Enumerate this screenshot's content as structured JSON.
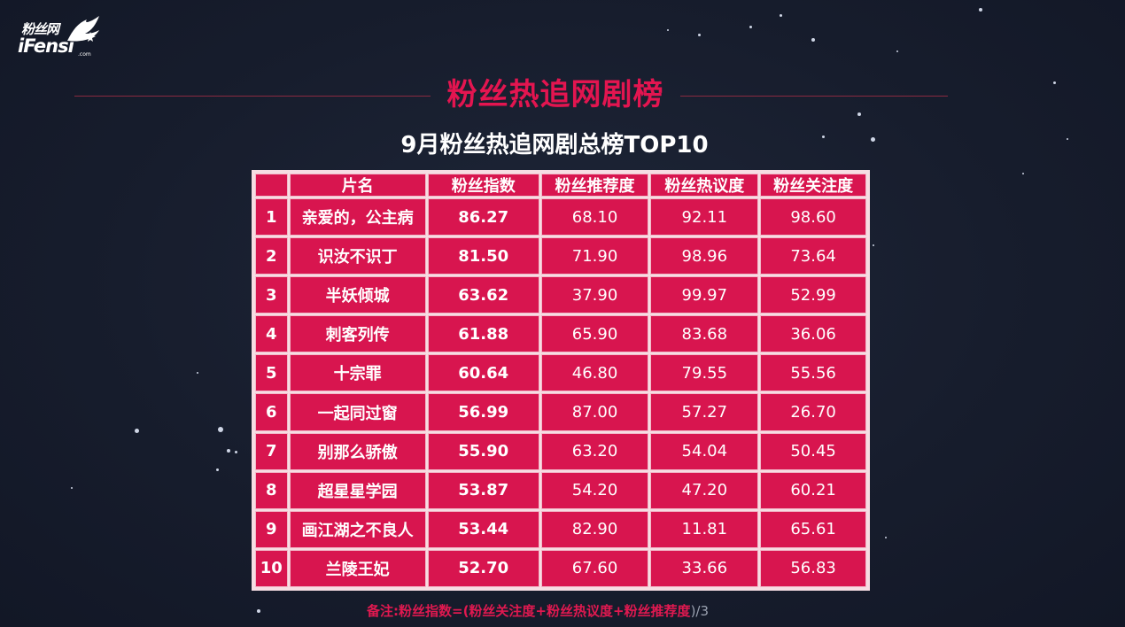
{
  "logo": {
    "top_text": "粉丝网",
    "main_text": "iFensi",
    "suffix": ".com"
  },
  "title": "粉丝热追网剧榜",
  "subtitle": "9月粉丝热追网剧总榜TOP10",
  "table": {
    "headers": [
      "",
      "片名",
      "粉丝指数",
      "粉丝推荐度",
      "粉丝热议度",
      "粉丝关注度"
    ],
    "rows": [
      [
        "1",
        "亲爱的，公主病",
        "86.27",
        "68.10",
        "92.11",
        "98.60"
      ],
      [
        "2",
        "识汝不识丁",
        "81.50",
        "71.90",
        "98.96",
        "73.64"
      ],
      [
        "3",
        "半妖倾城",
        "63.62",
        "37.90",
        "99.97",
        "52.99"
      ],
      [
        "4",
        "刺客列传",
        "61.88",
        "65.90",
        "83.68",
        "36.06"
      ],
      [
        "5",
        "十宗罪",
        "60.64",
        "46.80",
        "79.55",
        "55.56"
      ],
      [
        "6",
        "一起同过窗",
        "56.99",
        "87.00",
        "57.27",
        "26.70"
      ],
      [
        "7",
        "别那么骄傲",
        "55.90",
        "63.20",
        "54.04",
        "50.45"
      ],
      [
        "8",
        "超星星学园",
        "53.87",
        "54.20",
        "47.20",
        "60.21"
      ],
      [
        "9",
        "画江湖之不良人",
        "53.44",
        "82.90",
        "11.81",
        "65.61"
      ],
      [
        "10",
        "兰陵王妃",
        "52.70",
        "67.60",
        "33.66",
        "56.83"
      ]
    ]
  },
  "note": {
    "text": "备注:粉丝指数=(粉丝关注度+粉丝热议度+粉丝推荐度",
    "tail": ")/3"
  },
  "colors": {
    "background": "#161c2c",
    "accent": "#e31550",
    "cell": "#d8154f"
  }
}
